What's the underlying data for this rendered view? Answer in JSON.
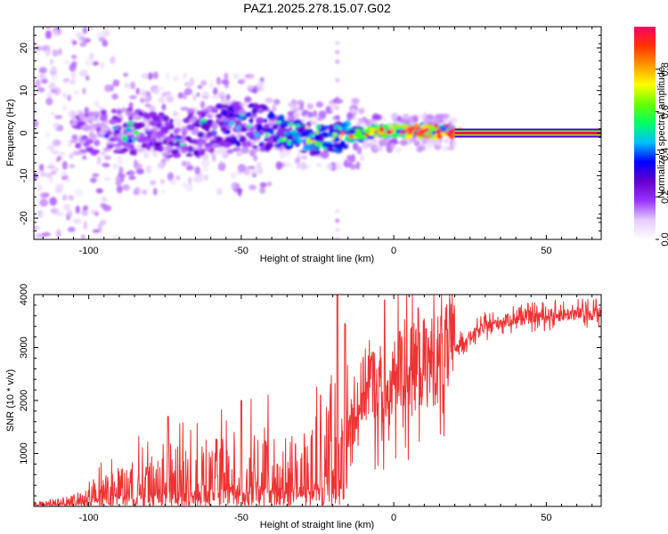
{
  "title": "PAZ1.2025.278.15.07.G02",
  "chart_data": [
    {
      "type": "heatmap",
      "title": "PAZ1.2025.278.15.07.G02",
      "xlabel": "Height of straight line (km)",
      "ylabel": "Frequency (Hz)",
      "xlim": [
        -118,
        68
      ],
      "ylim": [
        -25,
        25
      ],
      "x_ticks": [
        -100,
        -50,
        0,
        50
      ],
      "y_ticks": [
        -20,
        -10,
        0,
        10,
        20
      ],
      "colorbar": {
        "label": "Normalized spectral amplitude",
        "range": [
          0,
          1
        ],
        "ticks": [
          0.0,
          0.2,
          0.4,
          0.6,
          0.8
        ],
        "colors": [
          "#ffffff",
          "#e6ccff",
          "#9933ff",
          "#6600cc",
          "#0000ff",
          "#00bfff",
          "#00ff66",
          "#66ff00",
          "#ffff00",
          "#ff9900",
          "#ff3300",
          "#ff0066"
        ]
      },
      "ridge": [
        {
          "x": -100,
          "f": 0,
          "amp": 0.18
        },
        {
          "x": -90,
          "f": 0.5,
          "amp": 0.22
        },
        {
          "x": -80,
          "f": 0,
          "amp": 0.25
        },
        {
          "x": -70,
          "f": -1,
          "amp": 0.25
        },
        {
          "x": -55,
          "f": 2,
          "amp": 0.28
        },
        {
          "x": -45,
          "f": 1.5,
          "amp": 0.32
        },
        {
          "x": -35,
          "f": 0,
          "amp": 0.38
        },
        {
          "x": -25,
          "f": -1.5,
          "amp": 0.45
        },
        {
          "x": -15,
          "f": -0.5,
          "amp": 0.55
        },
        {
          "x": -5,
          "f": 0.5,
          "amp": 0.65
        },
        {
          "x": 5,
          "f": 0.5,
          "amp": 0.75
        },
        {
          "x": 15,
          "f": 0.5,
          "amp": 0.85
        },
        {
          "x": 20,
          "f": 0,
          "amp": 0.95
        },
        {
          "x": 68,
          "f": 0,
          "amp": 0.98
        }
      ]
    },
    {
      "type": "line",
      "xlabel": "Height of straight line (km)",
      "ylabel": "SNR (10 * v/v)",
      "xlim": [
        -118,
        68
      ],
      "ylim": [
        0,
        4000
      ],
      "x_ticks": [
        -100,
        -50,
        0,
        50
      ],
      "y_ticks": [
        1000,
        2000,
        3000,
        4000
      ],
      "series": [
        {
          "name": "SNR",
          "color": "#ee3333",
          "x": [
            -118,
            -110,
            -100,
            -90,
            -80,
            -70,
            -60,
            -50,
            -40,
            -30,
            -25,
            -20,
            -18,
            -15,
            -12,
            -10,
            -8,
            -5,
            -2,
            0,
            5,
            10,
            15,
            20,
            25,
            30,
            40,
            50,
            60,
            68
          ],
          "y": [
            60,
            100,
            220,
            420,
            550,
            650,
            720,
            750,
            780,
            800,
            900,
            1500,
            1000,
            1400,
            1900,
            2200,
            2400,
            2200,
            1800,
            2400,
            2600,
            2700,
            2800,
            3000,
            3200,
            3400,
            3550,
            3600,
            3640,
            3660
          ],
          "peaks": [
            {
              "x": -74,
              "y": 1700
            },
            {
              "x": -50,
              "y": 2000
            },
            {
              "x": -24,
              "y": 2100
            },
            {
              "x": -18.5,
              "y": 4000
            },
            {
              "x": -16,
              "y": 3450
            },
            {
              "x": -3,
              "y": 3900
            },
            {
              "x": 8,
              "y": 3750
            },
            {
              "x": 2,
              "y": 3300
            }
          ]
        }
      ]
    }
  ]
}
